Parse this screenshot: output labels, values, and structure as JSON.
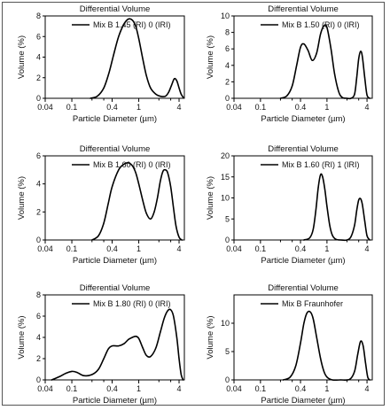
{
  "chart_data": [
    {
      "type": "line",
      "title": "Differential Volume",
      "xlabel": "Particle Diameter (µm)",
      "ylabel": "Volume (%)",
      "xscale": "log",
      "xlim": [
        0.04,
        4.8
      ],
      "xticks": [
        0.04,
        0.1,
        0.4,
        1,
        4
      ],
      "xtick_labels": [
        "0.04",
        "0.1",
        "0.4",
        "1",
        "4"
      ],
      "xminor": [
        0.2,
        0.3,
        2,
        3
      ],
      "ylim": [
        0,
        8
      ],
      "yticks": [
        0,
        2,
        4,
        6,
        8
      ],
      "legend_loc": "top",
      "series": [
        {
          "name": "Mix B  1.45 (RI) 0 (IRI)",
          "x": [
            0.19,
            0.24,
            0.3,
            0.36,
            0.42,
            0.5,
            0.6,
            0.7,
            0.8,
            0.9,
            1.0,
            1.15,
            1.3,
            1.5,
            1.8,
            2.1,
            2.5,
            2.8,
            3.1,
            3.4,
            3.7,
            4.0,
            4.3,
            4.6
          ],
          "y": [
            0,
            0.2,
            1.0,
            2.5,
            4.2,
            6.0,
            7.2,
            7.7,
            7.6,
            7.0,
            5.8,
            3.8,
            2.2,
            1.0,
            0.4,
            0.2,
            0.2,
            0.6,
            1.3,
            1.9,
            1.7,
            1.0,
            0.4,
            0.1
          ]
        }
      ]
    },
    {
      "type": "line",
      "title": "Differential Volume",
      "xlabel": "Particle Diameter (µm)",
      "ylabel": "Volume (%)",
      "xscale": "log",
      "xlim": [
        0.04,
        4.8
      ],
      "xticks": [
        0.04,
        0.1,
        0.4,
        1,
        4
      ],
      "xtick_labels": [
        "0.04",
        "0.1",
        "0.4",
        "1",
        "4"
      ],
      "xminor": [
        0.2,
        0.3,
        2,
        3
      ],
      "ylim": [
        0,
        10
      ],
      "yticks": [
        0,
        2,
        4,
        6,
        8,
        10
      ],
      "legend_loc": "top",
      "series": [
        {
          "name": "Mix B  1.50 (RI) 0 (IRI)",
          "x": [
            0.2,
            0.25,
            0.3,
            0.35,
            0.4,
            0.45,
            0.52,
            0.6,
            0.7,
            0.8,
            0.9,
            1.0,
            1.15,
            1.3,
            1.5,
            1.7,
            2.0,
            2.3,
            2.6,
            2.8,
            3.0,
            3.2,
            3.4,
            3.7,
            4.0,
            4.4
          ],
          "y": [
            0,
            0.3,
            1.5,
            4.0,
            6.2,
            6.6,
            5.8,
            4.6,
            5.5,
            7.8,
            8.8,
            8.6,
            6.0,
            3.0,
            0.8,
            0.1,
            0,
            0,
            0.5,
            2.5,
            4.8,
            5.7,
            5.1,
            2.5,
            0.4,
            0
          ]
        }
      ]
    },
    {
      "type": "line",
      "title": "Differential Volume",
      "xlabel": "Particle Diameter (µm)",
      "ylabel": "Volume (%)",
      "xscale": "log",
      "xlim": [
        0.04,
        4.8
      ],
      "xticks": [
        0.04,
        0.1,
        0.4,
        1,
        4
      ],
      "xtick_labels": [
        "0.04",
        "0.1",
        "0.4",
        "1",
        "4"
      ],
      "xminor": [
        0.2,
        0.3,
        2,
        3
      ],
      "ylim": [
        0,
        6
      ],
      "yticks": [
        0,
        2,
        4,
        6
      ],
      "legend_loc": "top",
      "series": [
        {
          "name": "Mix B  1.60 (RI) 0 (IRI)",
          "x": [
            0.2,
            0.25,
            0.3,
            0.35,
            0.4,
            0.5,
            0.6,
            0.7,
            0.8,
            0.9,
            1.0,
            1.15,
            1.3,
            1.5,
            1.7,
            1.9,
            2.1,
            2.3,
            2.5,
            2.7,
            3.0,
            3.3,
            3.6,
            4.0,
            4.4
          ],
          "y": [
            0,
            0.3,
            1.2,
            2.6,
            3.8,
            5.0,
            5.4,
            5.5,
            5.3,
            4.8,
            4.0,
            2.8,
            1.9,
            1.5,
            2.0,
            3.0,
            4.2,
            4.9,
            5.0,
            4.8,
            3.8,
            2.3,
            1.0,
            0.2,
            0
          ]
        }
      ]
    },
    {
      "type": "line",
      "title": "Differential Volume",
      "xlabel": "Particle Diameter (µm)",
      "ylabel": "Volume (%)",
      "xscale": "log",
      "xlim": [
        0.04,
        4.8
      ],
      "xticks": [
        0.04,
        0.1,
        0.4,
        1,
        4
      ],
      "xtick_labels": [
        "0.04",
        "0.1",
        "0.4",
        "1",
        "4"
      ],
      "xminor": [
        0.2,
        0.3,
        2,
        3
      ],
      "ylim": [
        0,
        20
      ],
      "yticks": [
        0,
        5,
        10,
        15,
        20
      ],
      "legend_loc": "top",
      "series": [
        {
          "name": "Mix B  1.60 (RI) 1 (IRI)",
          "x": [
            0.45,
            0.55,
            0.62,
            0.68,
            0.74,
            0.8,
            0.86,
            0.93,
            1.0,
            1.1,
            1.2,
            1.35,
            1.6,
            2.0,
            2.3,
            2.6,
            2.8,
            3.0,
            3.2,
            3.4,
            3.7,
            4.0,
            4.4
          ],
          "y": [
            0,
            0.5,
            2.5,
            7.0,
            12.5,
            15.5,
            15.0,
            12.0,
            8.0,
            3.5,
            1.2,
            0.2,
            0,
            0,
            0.8,
            3.5,
            7.0,
            9.5,
            9.8,
            8.5,
            4.5,
            1.0,
            0
          ]
        }
      ]
    },
    {
      "type": "line",
      "title": "Differential Volume",
      "xlabel": "Particle Diameter (µm)",
      "ylabel": "Volume (%)",
      "xscale": "log",
      "xlim": [
        0.04,
        4.8
      ],
      "xticks": [
        0.04,
        0.1,
        0.4,
        1,
        4
      ],
      "xtick_labels": [
        "0.04",
        "0.1",
        "0.4",
        "1",
        "4"
      ],
      "xminor": [
        0.2,
        0.3,
        2,
        3
      ],
      "ylim": [
        0,
        8
      ],
      "yticks": [
        0,
        2,
        4,
        6,
        8
      ],
      "legend_loc": "top",
      "series": [
        {
          "name": "Mix B  1.80 (RI) 0 (IRI)",
          "x": [
            0.05,
            0.065,
            0.08,
            0.1,
            0.12,
            0.15,
            0.2,
            0.25,
            0.3,
            0.35,
            0.4,
            0.5,
            0.6,
            0.7,
            0.8,
            0.9,
            1.0,
            1.15,
            1.3,
            1.5,
            1.8,
            2.1,
            2.4,
            2.7,
            3.0,
            3.3,
            3.7,
            4.0,
            4.3,
            4.6
          ],
          "y": [
            0,
            0.3,
            0.6,
            0.8,
            0.7,
            0.4,
            0.5,
            1.0,
            2.0,
            2.9,
            3.2,
            3.2,
            3.4,
            3.8,
            4.0,
            4.1,
            3.9,
            3.0,
            2.3,
            2.2,
            3.0,
            4.5,
            5.8,
            6.5,
            6.6,
            6.0,
            4.0,
            2.0,
            0.5,
            0
          ]
        }
      ]
    },
    {
      "type": "line",
      "title": "Differential Volume",
      "xlabel": "Particle Diameter (µm)",
      "ylabel": "Volume (%)",
      "xscale": "log",
      "xlim": [
        0.04,
        4.8
      ],
      "xticks": [
        0.04,
        0.1,
        0.4,
        1,
        4
      ],
      "xtick_labels": [
        "0.04",
        "0.1",
        "0.4",
        "1",
        "4"
      ],
      "xminor": [
        0.2,
        0.3,
        2,
        3
      ],
      "ylim": [
        0,
        15
      ],
      "yticks": [
        0,
        5,
        10
      ],
      "legend_loc": "top",
      "series": [
        {
          "name": "Mix B  Fraunhofer",
          "x": [
            0.22,
            0.28,
            0.34,
            0.4,
            0.45,
            0.5,
            0.56,
            0.62,
            0.7,
            0.8,
            0.9,
            1.0,
            1.2,
            1.6,
            2.2,
            2.6,
            2.9,
            3.2,
            3.5,
            3.8,
            4.1,
            4.4
          ],
          "y": [
            0,
            0.5,
            2.5,
            6.5,
            10.0,
            11.8,
            12.0,
            10.8,
            7.5,
            3.8,
            1.5,
            0.5,
            0,
            0,
            0.1,
            1.5,
            4.5,
            6.8,
            6.0,
            3.0,
            0.5,
            0
          ]
        }
      ]
    }
  ]
}
